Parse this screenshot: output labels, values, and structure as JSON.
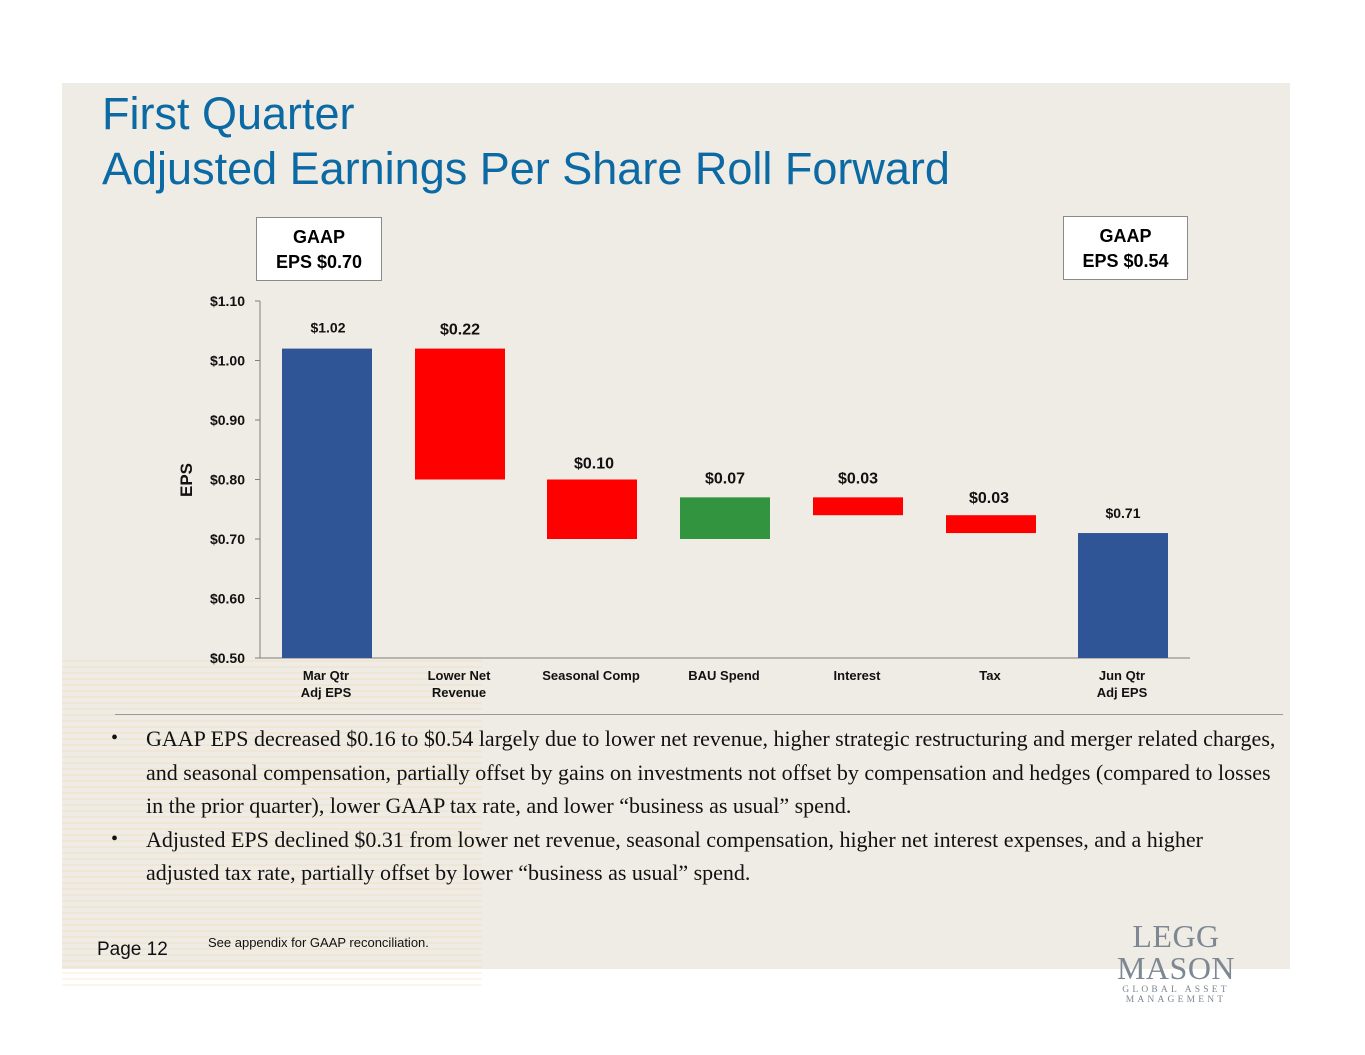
{
  "title": {
    "line1": "First Quarter",
    "line2": "Adjusted Earnings Per Share Roll Forward"
  },
  "gaap_left": {
    "line1": "GAAP",
    "line2": "EPS $0.70"
  },
  "gaap_right": {
    "line1": "GAAP",
    "line2": "EPS $0.54"
  },
  "chart_data": {
    "type": "bar",
    "subtype": "waterfall",
    "ylabel": "EPS",
    "ylim": [
      0.5,
      1.1
    ],
    "yticks": [
      1.1,
      1.0,
      0.9,
      0.8,
      0.7,
      0.6,
      0.5
    ],
    "ytick_labels": [
      "$1.10",
      "$1.00",
      "$0.90",
      "$0.80",
      "$0.70",
      "$0.60",
      "$0.50"
    ],
    "grid": false,
    "bars": [
      {
        "category": [
          "Mar Qtr",
          "Adj EPS"
        ],
        "bottom": 0.5,
        "top": 1.02,
        "label": "$1.02",
        "kind": "total",
        "color": "#2f5597"
      },
      {
        "category": [
          "Lower Net",
          "Revenue"
        ],
        "bottom": 0.8,
        "top": 1.02,
        "label": "$0.22",
        "kind": "decrease",
        "color": "#ff0000"
      },
      {
        "category": [
          "Seasonal Comp"
        ],
        "bottom": 0.7,
        "top": 0.8,
        "label": "$0.10",
        "kind": "decrease",
        "color": "#ff0000"
      },
      {
        "category": [
          "BAU Spend"
        ],
        "bottom": 0.7,
        "top": 0.77,
        "label": "$0.07",
        "kind": "increase",
        "color": "#339440"
      },
      {
        "category": [
          "Interest"
        ],
        "bottom": 0.74,
        "top": 0.77,
        "label": "$0.03",
        "kind": "decrease",
        "color": "#ff0000"
      },
      {
        "category": [
          "Tax"
        ],
        "bottom": 0.71,
        "top": 0.74,
        "label": "$0.03",
        "kind": "decrease",
        "color": "#ff0000"
      },
      {
        "category": [
          "Jun Qtr",
          "Adj EPS"
        ],
        "bottom": 0.5,
        "top": 0.71,
        "label": "$0.71",
        "kind": "total",
        "color": "#2f5597"
      }
    ]
  },
  "bullets": [
    "GAAP EPS decreased $0.16 to $0.54 largely due to lower net revenue, higher strategic restructuring and merger related charges, and seasonal compensation, partially offset by gains on investments not offset by compensation and hedges (compared to losses in the prior quarter), lower GAAP tax rate, and lower “business as usual” spend.",
    "Adjusted EPS declined $0.31 from lower net revenue, seasonal compensation, higher net interest expenses, and a higher adjusted tax rate, partially offset by lower “business as usual” spend."
  ],
  "bullet_symbol": "•",
  "page_label": "Page 12",
  "footnote": "See appendix for GAAP reconciliation.",
  "logo": {
    "name": "LEGG MASON",
    "tagline": "GLOBAL ASSET MANAGEMENT"
  }
}
